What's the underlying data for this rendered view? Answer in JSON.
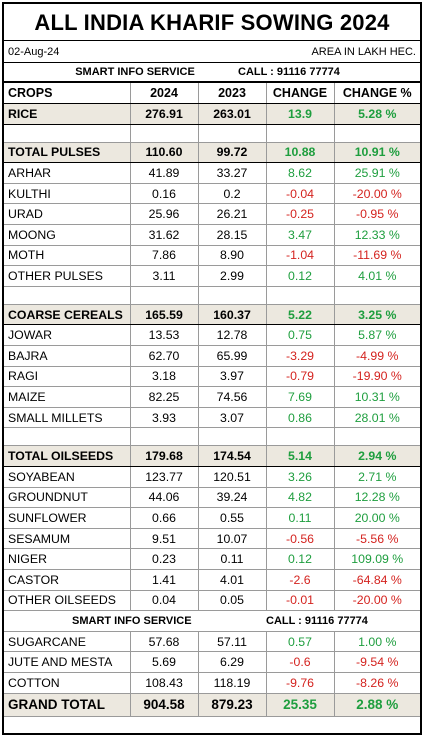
{
  "title": "ALL INDIA KHARIF SOWING 2024",
  "date": "02-Aug-24",
  "area_unit": "AREA IN LAKH HEC.",
  "service_name": "SMART INFO SERVICE",
  "service_call": "CALL : 91116 77774",
  "colors": {
    "positive": "#1e9e3e",
    "negative": "#d4231f",
    "highlight_row": "#ece8df"
  },
  "headers": [
    "CROPS",
    "2024",
    "2023",
    "CHANGE",
    "CHANGE %"
  ],
  "rows": [
    {
      "kind": "bold",
      "crop": "RICE",
      "y2024": "276.91",
      "y2023": "263.01",
      "change": "13.9",
      "pct": "5.28 %",
      "sign": "pos"
    },
    {
      "kind": "blank"
    },
    {
      "kind": "bold",
      "crop": "TOTAL PULSES",
      "y2024": "110.60",
      "y2023": "99.72",
      "change": "10.88",
      "pct": "10.91 %",
      "sign": "pos"
    },
    {
      "kind": "row",
      "crop": "ARHAR",
      "y2024": "41.89",
      "y2023": "33.27",
      "change": "8.62",
      "pct": "25.91 %",
      "sign": "pos"
    },
    {
      "kind": "row",
      "crop": "KULTHI",
      "y2024": "0.16",
      "y2023": "0.2",
      "change": "-0.04",
      "pct": "-20.00 %",
      "sign": "neg"
    },
    {
      "kind": "row",
      "crop": "URAD",
      "y2024": "25.96",
      "y2023": "26.21",
      "change": "-0.25",
      "pct": "-0.95 %",
      "sign": "neg"
    },
    {
      "kind": "row",
      "crop": "MOONG",
      "y2024": "31.62",
      "y2023": "28.15",
      "change": "3.47",
      "pct": "12.33 %",
      "sign": "pos"
    },
    {
      "kind": "row",
      "crop": "MOTH",
      "y2024": "7.86",
      "y2023": "8.90",
      "change": "-1.04",
      "pct": "-11.69 %",
      "sign": "neg"
    },
    {
      "kind": "row",
      "crop": "OTHER PULSES",
      "y2024": "3.11",
      "y2023": "2.99",
      "change": "0.12",
      "pct": "4.01 %",
      "sign": "pos"
    },
    {
      "kind": "blank"
    },
    {
      "kind": "bold",
      "crop": "COARSE CEREALS",
      "y2024": "165.59",
      "y2023": "160.37",
      "change": "5.22",
      "pct": "3.25 %",
      "sign": "pos"
    },
    {
      "kind": "row",
      "crop": "JOWAR",
      "y2024": "13.53",
      "y2023": "12.78",
      "change": "0.75",
      "pct": "5.87 %",
      "sign": "pos"
    },
    {
      "kind": "row",
      "crop": "BAJRA",
      "y2024": "62.70",
      "y2023": "65.99",
      "change": "-3.29",
      "pct": "-4.99 %",
      "sign": "neg"
    },
    {
      "kind": "row",
      "crop": "RAGI",
      "y2024": "3.18",
      "y2023": "3.97",
      "change": "-0.79",
      "pct": "-19.90 %",
      "sign": "neg"
    },
    {
      "kind": "row",
      "crop": "MAIZE",
      "y2024": "82.25",
      "y2023": "74.56",
      "change": "7.69",
      "pct": "10.31 %",
      "sign": "pos"
    },
    {
      "kind": "row",
      "crop": "SMALL MILLETS",
      "y2024": "3.93",
      "y2023": "3.07",
      "change": "0.86",
      "pct": "28.01 %",
      "sign": "pos"
    },
    {
      "kind": "blank"
    },
    {
      "kind": "bold",
      "crop": "TOTAL OILSEEDS",
      "y2024": "179.68",
      "y2023": "174.54",
      "change": "5.14",
      "pct": "2.94 %",
      "sign": "pos"
    },
    {
      "kind": "row",
      "crop": "SOYABEAN",
      "y2024": "123.77",
      "y2023": "120.51",
      "change": "3.26",
      "pct": "2.71 %",
      "sign": "pos"
    },
    {
      "kind": "row",
      "crop": "GROUNDNUT",
      "y2024": "44.06",
      "y2023": "39.24",
      "change": "4.82",
      "pct": "12.28 %",
      "sign": "pos"
    },
    {
      "kind": "row",
      "crop": "SUNFLOWER",
      "y2024": "0.66",
      "y2023": "0.55",
      "change": "0.11",
      "pct": "20.00 %",
      "sign": "pos"
    },
    {
      "kind": "row",
      "crop": "SESAMUM",
      "y2024": "9.51",
      "y2023": "10.07",
      "change": "-0.56",
      "pct": "-5.56 %",
      "sign": "neg"
    },
    {
      "kind": "row",
      "crop": "NIGER",
      "y2024": "0.23",
      "y2023": "0.11",
      "change": "0.12",
      "pct": "109.09 %",
      "sign": "pos"
    },
    {
      "kind": "row",
      "crop": "CASTOR",
      "y2024": "1.41",
      "y2023": "4.01",
      "change": "-2.6",
      "pct": "-64.84 %",
      "sign": "neg"
    },
    {
      "kind": "row",
      "crop": "OTHER OILSEEDS",
      "y2024": "0.04",
      "y2023": "0.05",
      "change": "-0.01",
      "pct": "-20.00 %",
      "sign": "neg"
    },
    {
      "kind": "service"
    },
    {
      "kind": "row",
      "crop": "SUGARCANE",
      "y2024": "57.68",
      "y2023": "57.11",
      "change": "0.57",
      "pct": "1.00 %",
      "sign": "pos"
    },
    {
      "kind": "row",
      "crop": "JUTE AND MESTA",
      "y2024": "5.69",
      "y2023": "6.29",
      "change": "-0.6",
      "pct": "-9.54 %",
      "sign": "neg"
    },
    {
      "kind": "row",
      "crop": "COTTON",
      "y2024": "108.43",
      "y2023": "118.19",
      "change": "-9.76",
      "pct": "-8.26 %",
      "sign": "neg"
    },
    {
      "kind": "grand",
      "crop": "GRAND TOTAL",
      "y2024": "904.58",
      "y2023": "879.23",
      "change": "25.35",
      "pct": "2.88 %",
      "sign": "pos"
    }
  ]
}
